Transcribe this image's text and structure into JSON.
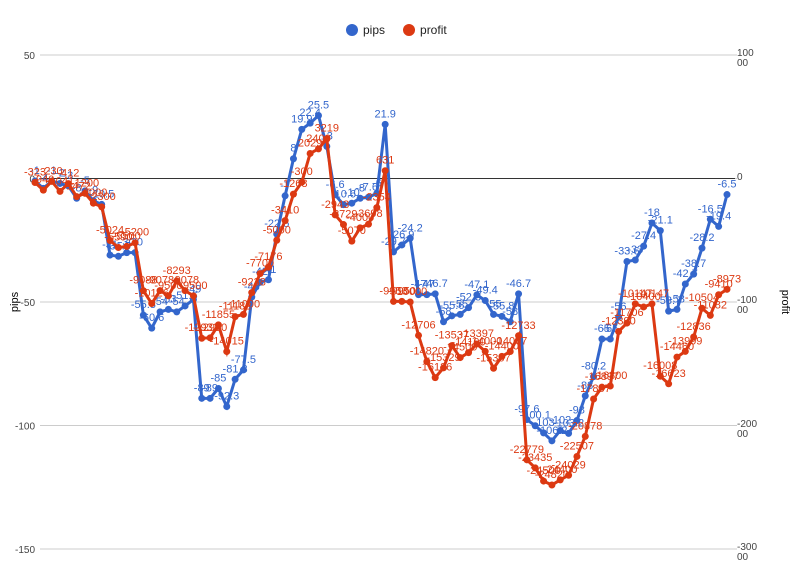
{
  "chart_data": {
    "type": "line",
    "series": [
      {
        "name": "pips",
        "color": "#3366cc",
        "values": [
          -1,
          -4,
          -1,
          -2,
          -3,
          -8,
          -5,
          -9,
          -10.5,
          -31,
          -31.5,
          -30,
          -30,
          -55.3,
          -60.6,
          -54,
          -53,
          -54,
          -51.6,
          -49,
          -89,
          -89,
          -85,
          -92.3,
          -81.3,
          -77.5,
          -48,
          -42,
          -41,
          -22.5,
          -7,
          8,
          19.9,
          22.4,
          25.5,
          13,
          -6.6,
          -10.6,
          -10,
          -8,
          -7.6,
          -6,
          21.9,
          -29.7,
          -26.9,
          -24.2,
          -47,
          -47,
          -46.7,
          -58,
          -55.6,
          -55,
          -52.3,
          -47.1,
          -49.4,
          -55,
          -55.8,
          -58,
          -46.7,
          -97.6,
          -100.1,
          -103,
          -106.2,
          -102,
          -103.2,
          -98,
          -88,
          -80.2,
          -65,
          -65,
          -56,
          -33.6,
          -33,
          -27.4,
          -18,
          -21.1,
          -53.7,
          -53,
          -42.7,
          -38.7,
          -28.2,
          -16.5,
          -19.4,
          -6.5
        ]
      },
      {
        "name": "profit",
        "color": "#dc3912",
        "axis": "y2",
        "values": [
          -323,
          -940,
          -230,
          -1041,
          -412,
          -1472,
          -1200,
          -2000,
          -2300,
          -5024,
          -5590,
          -5500,
          -5200,
          -9088,
          -10126,
          -9078,
          -9500,
          -8293,
          -9078,
          -9500,
          -12933,
          -12900,
          -11855,
          -14015,
          -11182,
          -11000,
          -9238,
          -7700,
          -7176,
          -5000,
          -3410,
          -1268,
          -300,
          2029,
          2400,
          3219,
          -2943,
          -3729,
          -5070,
          -4000,
          -3698,
          -2354,
          631,
          -9953,
          -9950,
          -10000,
          -12706,
          -14820,
          -16126,
          -15329,
          -13537,
          -14500,
          -14100,
          -13397,
          -14000,
          -15367,
          -14400,
          -14007,
          -12733,
          -22779,
          -23435,
          -24500,
          -24820,
          -24400,
          -24029,
          -22507,
          -20878,
          -17857,
          -16897,
          -16800,
          -12390,
          -11706,
          -10147,
          -10400,
          -10147,
          -16008,
          -16623,
          -14460,
          -13999,
          -12836,
          -10504,
          -11082,
          -9410,
          -8973
        ]
      }
    ],
    "ylabel": "pips",
    "y2label": "profit",
    "ylim": [
      -150,
      50
    ],
    "yticks": [
      -150,
      -100,
      -50,
      0,
      50
    ],
    "y2lim": [
      -30000,
      10000
    ],
    "y2ticks": [
      -30000,
      -20000,
      -10000,
      0,
      10000
    ],
    "grid": true,
    "legend": "top"
  }
}
